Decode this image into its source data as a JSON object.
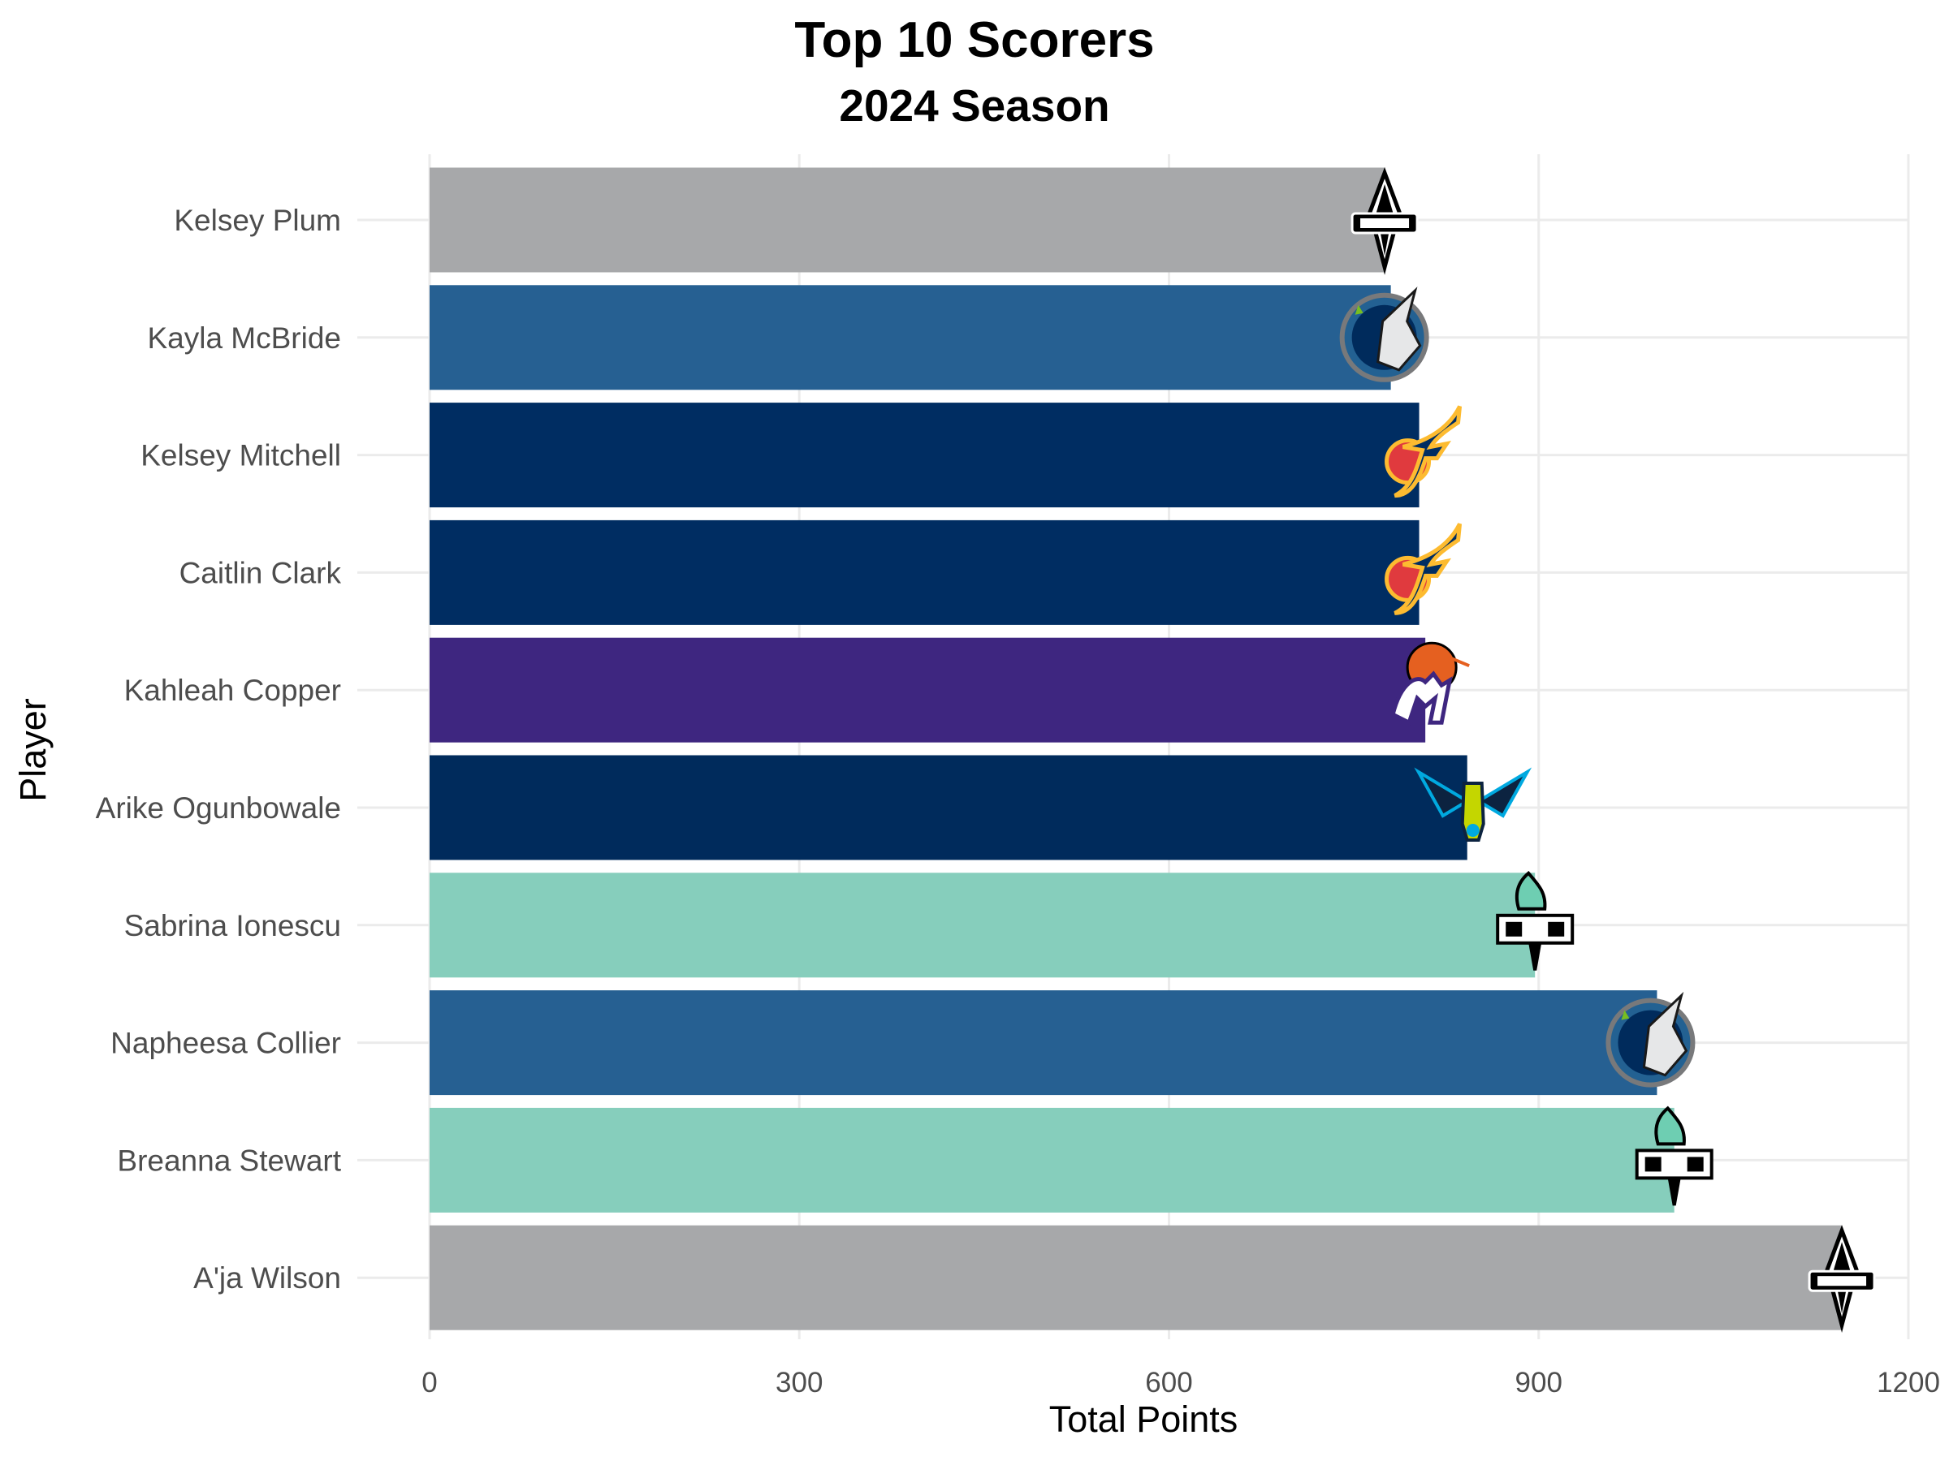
{
  "chart_data": {
    "type": "bar",
    "orientation": "horizontal",
    "title": "Top 10 Scorers",
    "subtitle": "2024 Season",
    "xlabel": "Total Points",
    "ylabel": "Player",
    "xlim": [
      0,
      1200
    ],
    "x_ticks": [
      "0",
      "300",
      "600",
      "900",
      "1200"
    ],
    "grid": "major-horizontal-and-vertical",
    "categories": [
      "Kelsey Plum",
      "Kayla McBride",
      "Kelsey Mitchell",
      "Caitlin Clark",
      "Kahleah Copper",
      "Arike Ogunbowale",
      "Sabrina Ionescu",
      "Napheesa Collier",
      "Breanna Stewart",
      "A'ja Wilson"
    ],
    "values": [
      775,
      780,
      803,
      803,
      808,
      842,
      897,
      996,
      1010,
      1146
    ],
    "colors": [
      "#A7A8AA",
      "#266092",
      "#002D62",
      "#002D62",
      "#3E2680",
      "#002B5C",
      "#86CEBC",
      "#266092",
      "#86CEBC",
      "#A7A8AA"
    ],
    "team_logos": [
      "aces-logo",
      "lynx-logo",
      "fever-logo",
      "fever-logo",
      "mercury-logo",
      "wings-logo",
      "liberty-logo",
      "lynx-logo",
      "liberty-logo",
      "aces-logo"
    ]
  }
}
